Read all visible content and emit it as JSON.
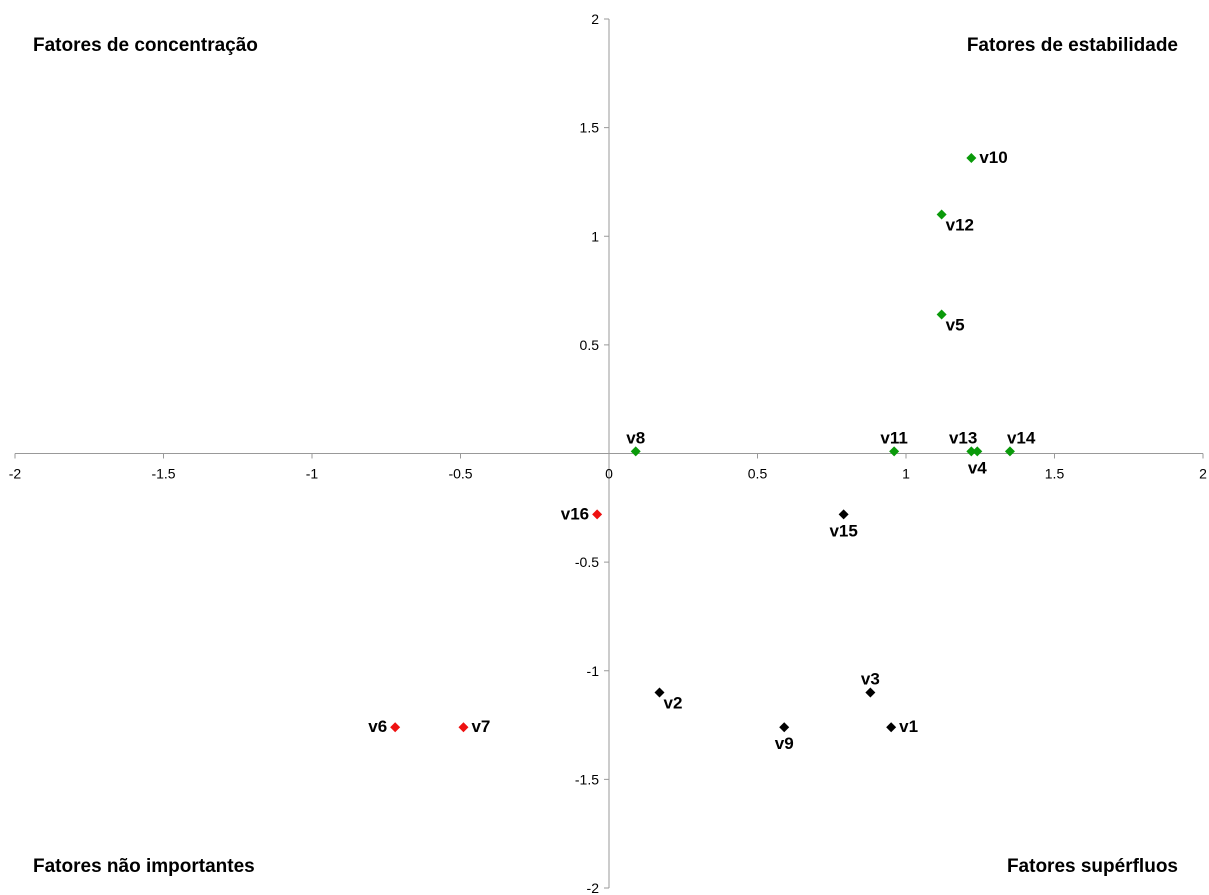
{
  "chart_data": {
    "type": "scatter",
    "title": "",
    "xlabel": "",
    "ylabel": "",
    "xlim": [
      -2,
      2
    ],
    "ylim": [
      -2,
      2
    ],
    "xticks": [
      -2,
      -1.5,
      -1,
      -0.5,
      0,
      0.5,
      1,
      1.5,
      2
    ],
    "yticks": [
      -2,
      -1.5,
      -1,
      -0.5,
      0.5,
      1,
      1.5,
      2
    ],
    "x_tick_labels": [
      "-2",
      "-1.5",
      "-1",
      "-0.5",
      "0",
      "0.5",
      "1",
      "1.5",
      "2"
    ],
    "y_tick_labels": [
      "-2",
      "-1.5",
      "-1",
      "-0.5",
      "0.5",
      "1",
      "1.5",
      "2"
    ],
    "grid": false,
    "quadrant_labels": {
      "top_left": "Fatores de concentração",
      "top_right": "Fatores de estabilidade",
      "bottom_left": "Fatores não importantes",
      "bottom_right": "Fatores supérfluos"
    },
    "colors": {
      "green": "#0a9a0a",
      "black": "#000000",
      "red": "#ee1111",
      "axis": "#999999"
    },
    "points": [
      {
        "label": "v10",
        "x": 1.22,
        "y": 1.36,
        "color": "green",
        "label_pos": "right"
      },
      {
        "label": "v12",
        "x": 1.12,
        "y": 1.1,
        "color": "green",
        "label_pos": "below-right"
      },
      {
        "label": "v5",
        "x": 1.12,
        "y": 0.64,
        "color": "green",
        "label_pos": "below-right"
      },
      {
        "label": "v8",
        "x": 0.09,
        "y": 0.01,
        "color": "green",
        "label_pos": "above"
      },
      {
        "label": "v11",
        "x": 0.96,
        "y": 0.01,
        "color": "green",
        "label_pos": "above"
      },
      {
        "label": "v13",
        "x": 1.22,
        "y": 0.01,
        "color": "green",
        "label_pos": "above-left"
      },
      {
        "label": "v4",
        "x": 1.24,
        "y": 0.01,
        "color": "green",
        "label_pos": "below"
      },
      {
        "label": "v14",
        "x": 1.35,
        "y": 0.01,
        "color": "green",
        "label_pos": "above-right"
      },
      {
        "label": "v16",
        "x": -0.04,
        "y": -0.28,
        "color": "red",
        "label_pos": "left"
      },
      {
        "label": "v15",
        "x": 0.79,
        "y": -0.28,
        "color": "black",
        "label_pos": "below"
      },
      {
        "label": "v2",
        "x": 0.17,
        "y": -1.1,
        "color": "black",
        "label_pos": "below-right"
      },
      {
        "label": "v3",
        "x": 0.88,
        "y": -1.1,
        "color": "black",
        "label_pos": "above"
      },
      {
        "label": "v1",
        "x": 0.95,
        "y": -1.26,
        "color": "black",
        "label_pos": "right"
      },
      {
        "label": "v9",
        "x": 0.59,
        "y": -1.26,
        "color": "black",
        "label_pos": "below"
      },
      {
        "label": "v6",
        "x": -0.72,
        "y": -1.26,
        "color": "red",
        "label_pos": "left"
      },
      {
        "label": "v7",
        "x": -0.49,
        "y": -1.26,
        "color": "red",
        "label_pos": "right"
      }
    ]
  }
}
